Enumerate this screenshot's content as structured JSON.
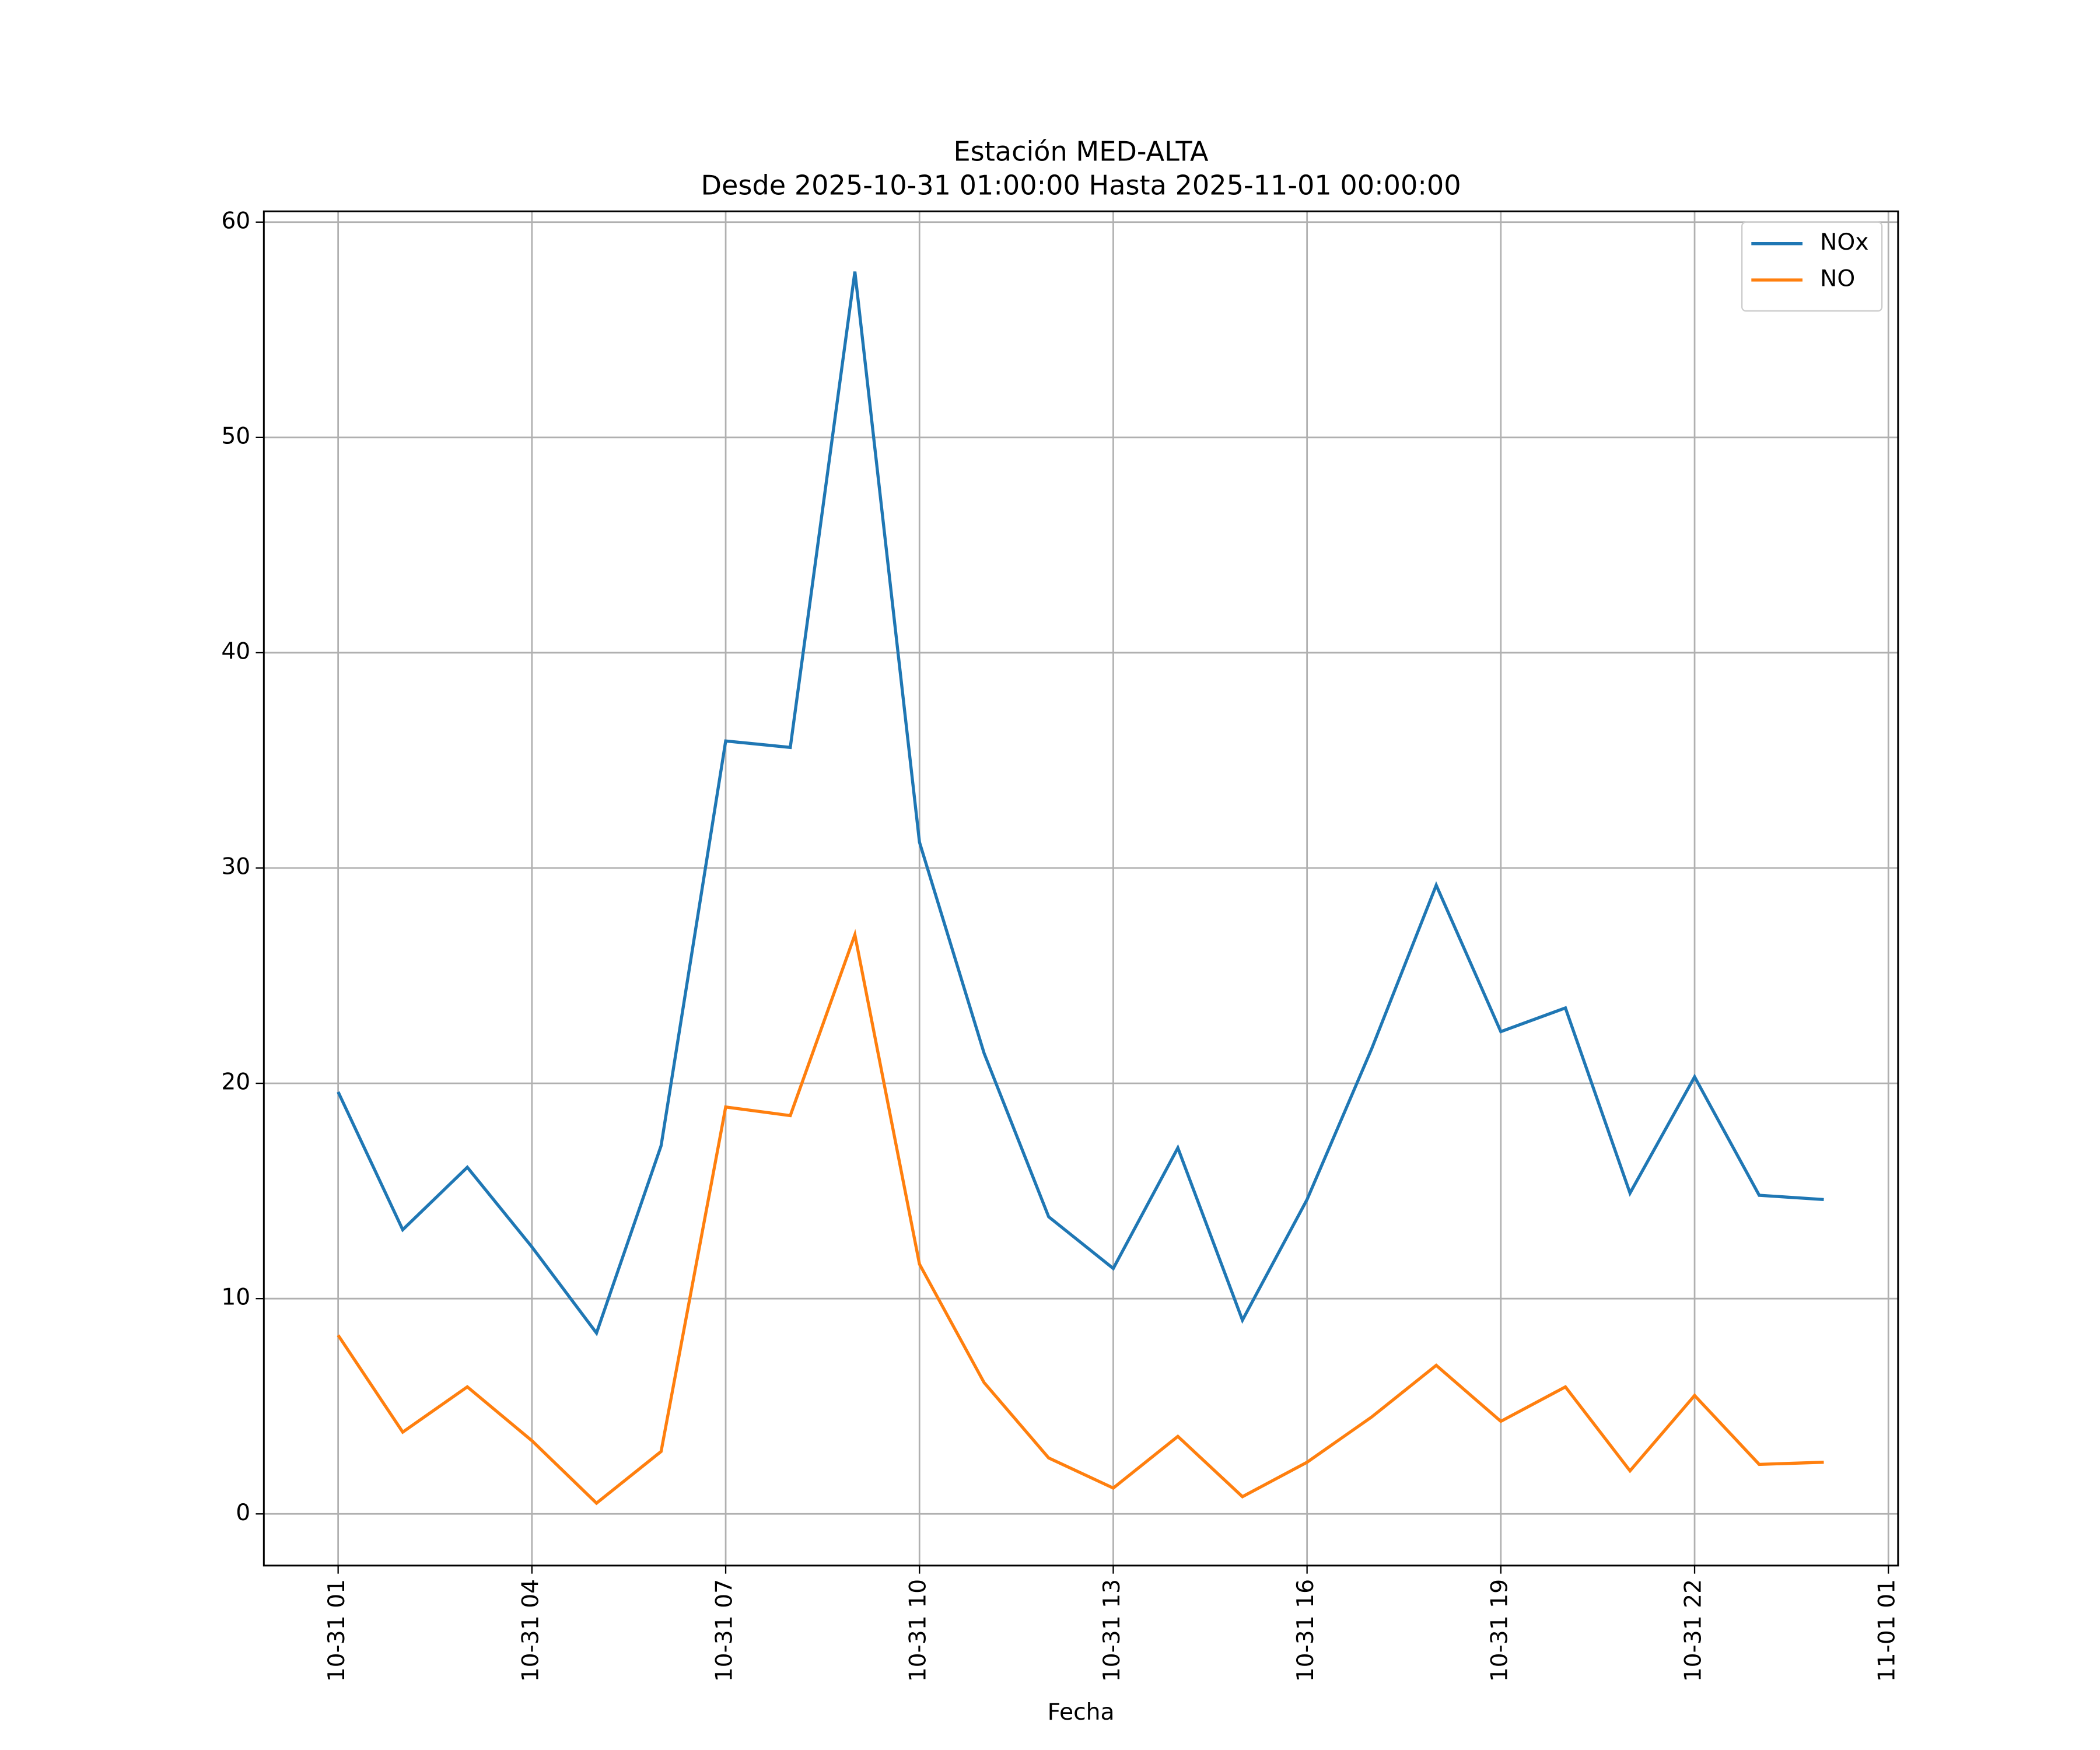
{
  "chart_data": {
    "type": "line",
    "title": "Estación MED-ALTA",
    "subtitle": "Desde 2025-10-31 01:00:00 Hasta 2025-11-01 00:00:00",
    "xlabel": "Fecha",
    "x": [
      "10-31 01",
      "10-31 02",
      "10-31 03",
      "10-31 04",
      "10-31 05",
      "10-31 06",
      "10-31 07",
      "10-31 08",
      "10-31 09",
      "10-31 10",
      "10-31 11",
      "10-31 12",
      "10-31 13",
      "10-31 14",
      "10-31 15",
      "10-31 16",
      "10-31 17",
      "10-31 18",
      "10-31 19",
      "10-31 20",
      "10-31 21",
      "10-31 22",
      "10-31 23",
      "11-01 00"
    ],
    "series": [
      {
        "name": "NOx",
        "color": "#1f77b4",
        "values": [
          19.6,
          13.2,
          16.1,
          12.4,
          8.4,
          17.1,
          35.9,
          35.6,
          57.7,
          31.2,
          21.4,
          13.8,
          11.4,
          17.0,
          9.0,
          14.6,
          21.6,
          29.2,
          22.4,
          23.5,
          14.9,
          20.3,
          14.8,
          14.6
        ]
      },
      {
        "name": "NO",
        "color": "#ff7f0e",
        "values": [
          8.3,
          3.8,
          5.9,
          3.4,
          0.5,
          2.9,
          18.9,
          18.5,
          26.9,
          11.6,
          6.1,
          2.6,
          1.2,
          3.6,
          0.8,
          2.4,
          4.5,
          6.9,
          4.3,
          5.9,
          2.0,
          5.5,
          2.3,
          2.4
        ]
      }
    ],
    "xticks": [
      "10-31 01",
      "10-31 04",
      "10-31 07",
      "10-31 10",
      "10-31 13",
      "10-31 16",
      "10-31 19",
      "10-31 22",
      "11-01 01"
    ],
    "ylim": [
      -2.4,
      60.5
    ],
    "yticks": [
      0,
      10,
      20,
      30,
      40,
      50,
      60
    ],
    "grid": true,
    "legend": "upper-right"
  }
}
